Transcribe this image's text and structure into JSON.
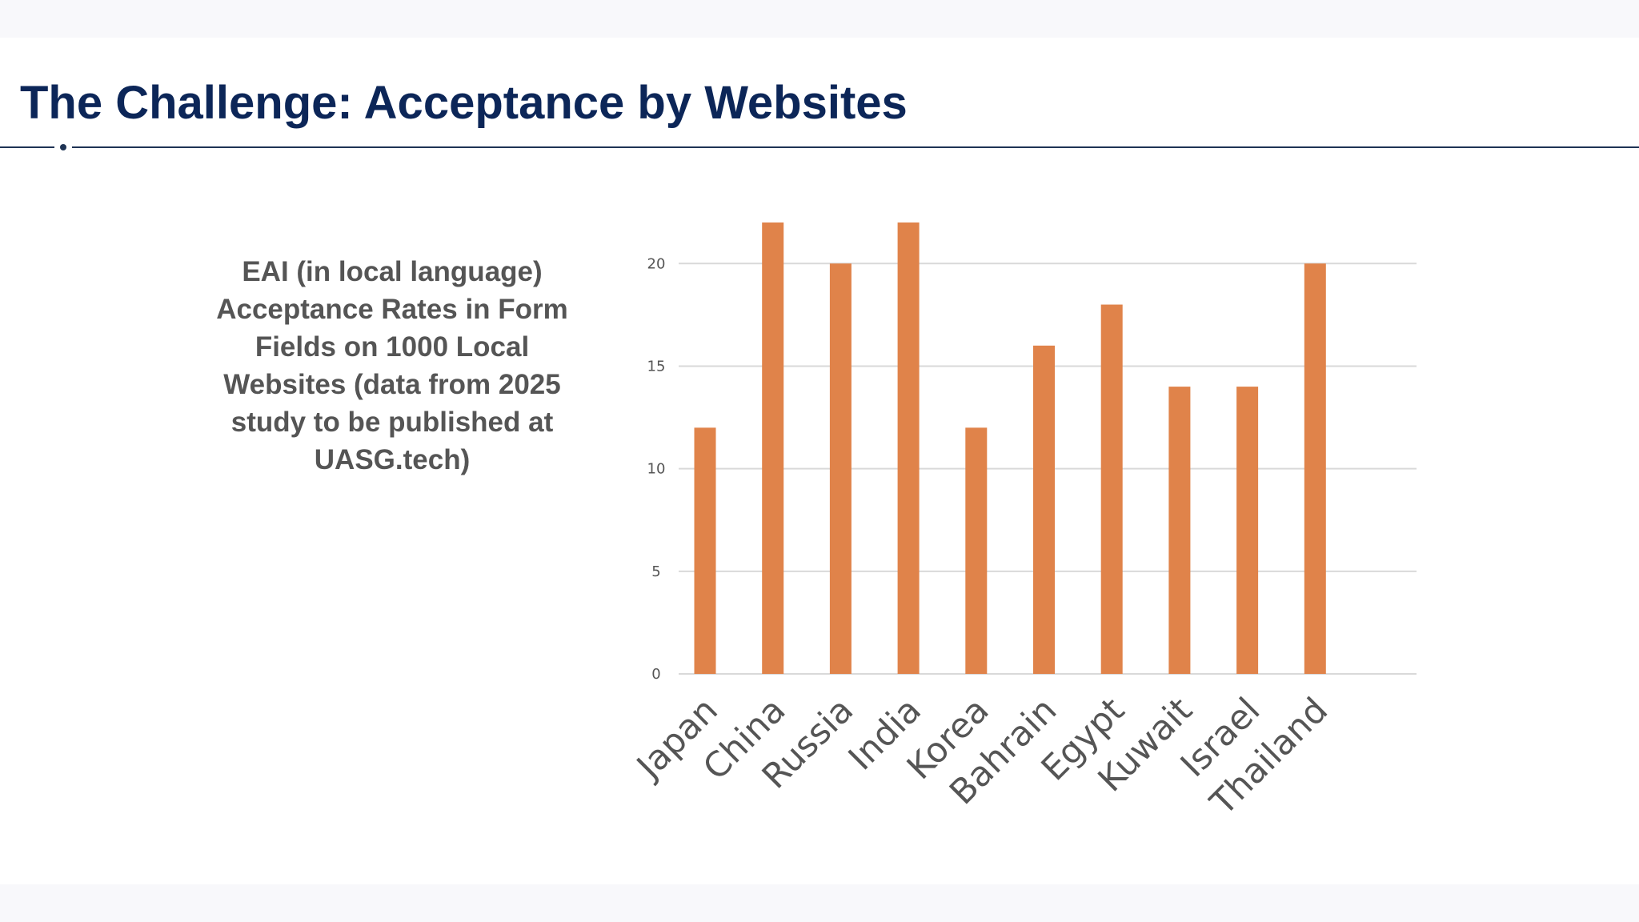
{
  "slide": {
    "title": "The Challenge: Acceptance by Websites",
    "description": "EAI (in local language) Acceptance Rates in Form Fields on 1000 Local Websites (data from 2025 study to be published at UASG.tech)"
  },
  "chart_data": {
    "type": "bar",
    "categories": [
      "Japan",
      "China",
      "Russia",
      "India",
      "Korea",
      "Bahrain",
      "Egypt",
      "Kuwait",
      "Israel",
      "Thailand"
    ],
    "values": [
      12,
      22,
      20,
      22,
      12,
      16,
      18,
      14,
      14,
      20
    ],
    "yticks": [
      0,
      5,
      10,
      15,
      20
    ],
    "ylim": [
      0,
      22
    ],
    "grid": true,
    "legend": "none",
    "bar_color": "#e0834a",
    "grid_color": "#d9d9d9"
  }
}
